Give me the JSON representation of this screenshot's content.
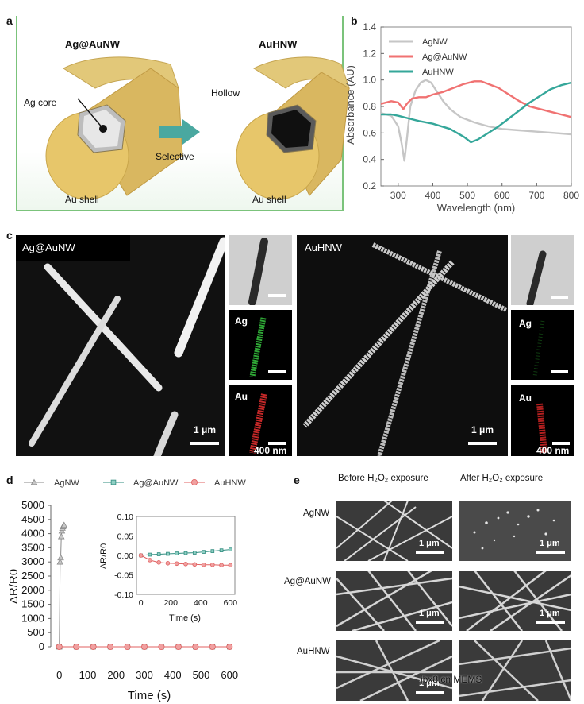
{
  "panel_a": {
    "label": "a",
    "left_title": "Ag@AuNW",
    "right_title": "AuHNW",
    "ag_core": "Ag core",
    "hollow": "Hollow",
    "selective": "Selective",
    "au_shell_left": "Au shell",
    "au_shell_right": "Au shell"
  },
  "panel_b": {
    "label": "b",
    "chart_data": {
      "type": "line",
      "xlabel": "Wavelength (nm)",
      "ylabel": "Absorbance (AU)",
      "xlim": [
        250,
        800
      ],
      "ylim": [
        0.2,
        1.4
      ],
      "xticks": [
        300,
        400,
        500,
        600,
        700,
        800
      ],
      "yticks": [
        0.2,
        0.4,
        0.6,
        0.8,
        1.0,
        1.2,
        1.4
      ],
      "legend": "top-left",
      "series": [
        {
          "name": "AgNW",
          "color": "#c6c6c6",
          "x": [
            250,
            280,
            300,
            310,
            318,
            325,
            335,
            350,
            365,
            380,
            395,
            410,
            430,
            450,
            480,
            520,
            560,
            600,
            650,
            700,
            750,
            800
          ],
          "y": [
            0.75,
            0.73,
            0.65,
            0.52,
            0.39,
            0.55,
            0.8,
            0.92,
            0.98,
            1.0,
            0.98,
            0.92,
            0.84,
            0.78,
            0.72,
            0.68,
            0.65,
            0.63,
            0.62,
            0.61,
            0.6,
            0.59
          ]
        },
        {
          "name": "Ag@AuNW",
          "color": "#f07272",
          "x": [
            250,
            280,
            300,
            315,
            325,
            340,
            360,
            380,
            400,
            430,
            460,
            490,
            520,
            540,
            560,
            590,
            620,
            650,
            680,
            710,
            740,
            770,
            800
          ],
          "y": [
            0.82,
            0.84,
            0.83,
            0.78,
            0.82,
            0.86,
            0.87,
            0.87,
            0.89,
            0.91,
            0.94,
            0.97,
            0.99,
            0.99,
            0.97,
            0.94,
            0.89,
            0.84,
            0.8,
            0.78,
            0.76,
            0.74,
            0.72
          ]
        },
        {
          "name": "AuHNW",
          "color": "#35a79a",
          "x": [
            250,
            280,
            300,
            330,
            360,
            400,
            450,
            490,
            510,
            530,
            560,
            590,
            620,
            650,
            680,
            710,
            740,
            770,
            800
          ],
          "y": [
            0.74,
            0.74,
            0.73,
            0.71,
            0.69,
            0.67,
            0.63,
            0.57,
            0.53,
            0.55,
            0.6,
            0.65,
            0.71,
            0.77,
            0.83,
            0.88,
            0.93,
            0.96,
            0.98
          ]
        }
      ]
    }
  },
  "panel_c": {
    "label": "c",
    "left_title": "Ag@AuNW",
    "right_title": "AuHNW",
    "scale_1um_left": "1 μm",
    "scale_1um_right": "1 μm",
    "ag_label_left": "Ag",
    "au_label_left": "Au",
    "ag_label_right": "Ag",
    "au_label_right": "Au",
    "scale_400_left": "400 nm",
    "scale_400_right": "400 nm"
  },
  "panel_d": {
    "label": "d",
    "chart_data": {
      "type": "scatter",
      "xlabel": "Time (s)",
      "ylabel": "ΔR/R0",
      "xlim": [
        -30,
        630
      ],
      "ylim": [
        0,
        5000
      ],
      "xticks": [
        0,
        100,
        200,
        300,
        400,
        500,
        600
      ],
      "yticks": [
        0,
        500,
        1000,
        1500,
        2000,
        2500,
        3000,
        3500,
        4000,
        4500,
        5000
      ],
      "legend": "top",
      "series": [
        {
          "name": "AgNW",
          "color": "#8a8a8a",
          "marker": "triangle",
          "x": [
            0,
            3,
            5,
            7,
            9,
            11,
            13,
            15,
            17
          ],
          "y": [
            0,
            3000,
            3150,
            3900,
            4100,
            4200,
            4250,
            4280,
            4300
          ]
        },
        {
          "name": "Ag@AuNW",
          "color": "#2f8c7f",
          "marker": "square",
          "x": [
            0,
            60,
            120,
            180,
            240,
            300,
            360,
            420,
            480,
            540,
            600
          ],
          "y": [
            0,
            0,
            0,
            0,
            0,
            0,
            0,
            0,
            0,
            0,
            0
          ]
        },
        {
          "name": "AuHNW",
          "color": "#e06060",
          "marker": "circle",
          "x": [
            0,
            60,
            120,
            180,
            240,
            300,
            360,
            420,
            480,
            540,
            600
          ],
          "y": [
            0,
            0,
            0,
            0,
            0,
            0,
            0,
            0,
            0,
            0,
            0
          ]
        }
      ],
      "inset": {
        "xlabel": "Time (s)",
        "ylabel": "ΔR/R0",
        "xlim": [
          -30,
          630
        ],
        "ylim": [
          -0.1,
          0.1
        ],
        "xticks": [
          0,
          200,
          400,
          600
        ],
        "yticks": [
          -0.1,
          -0.05,
          0.0,
          0.05,
          0.1
        ],
        "series": [
          {
            "name": "Ag@AuNW",
            "color": "#2f8c7f",
            "marker": "square",
            "x": [
              0,
              60,
              120,
              180,
              240,
              300,
              360,
              420,
              480,
              540,
              600
            ],
            "y": [
              0,
              0.002,
              0.003,
              0.004,
              0.005,
              0.006,
              0.007,
              0.009,
              0.011,
              0.013,
              0.015
            ]
          },
          {
            "name": "AuHNW",
            "color": "#e06060",
            "marker": "circle",
            "x": [
              0,
              60,
              120,
              180,
              240,
              300,
              360,
              420,
              480,
              540,
              600
            ],
            "y": [
              0,
              -0.012,
              -0.018,
              -0.02,
              -0.021,
              -0.022,
              -0.023,
              -0.024,
              -0.024,
              -0.025,
              -0.025
            ]
          }
        ]
      }
    }
  },
  "panel_e": {
    "label": "e",
    "col_before": "Before H₂O₂ exposure",
    "col_after": "After H₂O₂ exposure",
    "rows": [
      "AgNW",
      "Ag@AuNW",
      "AuHNW"
    ],
    "scale": "1 μm",
    "watermark": "jbx8.cn  MEMS"
  }
}
